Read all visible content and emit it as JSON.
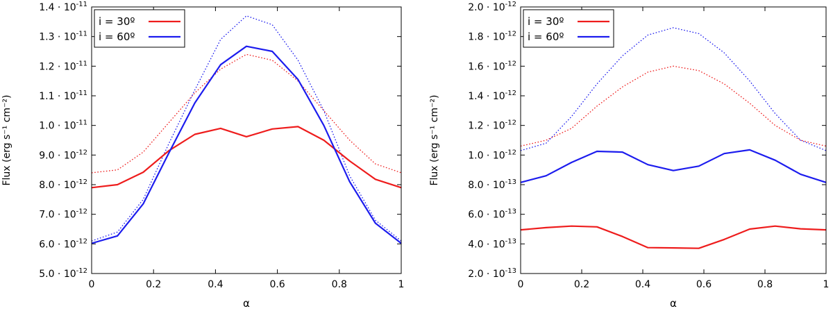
{
  "chart_data": [
    {
      "type": "line",
      "xlabel": "α",
      "ylabel": "Flux (erg s⁻¹ cm⁻²)",
      "xlim": [
        0,
        1
      ],
      "ylim": [
        5e-12,
        1.4e-11
      ],
      "x_ticks": [
        0,
        0.2,
        0.4,
        0.6,
        0.8,
        1
      ],
      "x_tick_labels": [
        "0",
        "0.2",
        "0.4",
        "0.6",
        "0.8",
        "1"
      ],
      "y_ticks": [
        5e-12,
        6e-12,
        7e-12,
        8e-12,
        9e-12,
        1e-11,
        1.1e-11,
        1.2e-11,
        1.3e-11,
        1.4e-11
      ],
      "y_tick_labels": [
        {
          "mantissa": "5.0 · 10",
          "exponent": "-12"
        },
        {
          "mantissa": "6.0 · 10",
          "exponent": "-12"
        },
        {
          "mantissa": "7.0 · 10",
          "exponent": "-12"
        },
        {
          "mantissa": "8.0 · 10",
          "exponent": "-12"
        },
        {
          "mantissa": "9.0 · 10",
          "exponent": "-12"
        },
        {
          "mantissa": "1.0 · 10",
          "exponent": "-11"
        },
        {
          "mantissa": "1.1 · 10",
          "exponent": "-11"
        },
        {
          "mantissa": "1.2 · 10",
          "exponent": "-11"
        },
        {
          "mantissa": "1.3 · 10",
          "exponent": "-11"
        },
        {
          "mantissa": "1.4 · 10",
          "exponent": "-11"
        }
      ],
      "legend": {
        "position": "top-left",
        "entries": [
          {
            "label": "i = 30º",
            "color": "#ee1c1c"
          },
          {
            "label": "i = 60º",
            "color": "#1c1cee"
          }
        ]
      },
      "x": [
        0,
        0.0833,
        0.1667,
        0.25,
        0.3333,
        0.4167,
        0.5,
        0.5833,
        0.6667,
        0.75,
        0.8333,
        0.9167,
        1
      ],
      "series": [
        {
          "name": "i = 30º",
          "style": "solid",
          "color": "#ee1c1c",
          "values": [
            7.9e-12,
            8e-12,
            8.42e-12,
            9.15e-12,
            9.7e-12,
            9.9e-12,
            9.62e-12,
            9.88e-12,
            9.96e-12,
            9.5e-12,
            8.8e-12,
            8.18e-12,
            7.9e-12
          ]
        },
        {
          "name": "i = 60º",
          "style": "solid",
          "color": "#1c1cee",
          "values": [
            6.02e-12,
            6.27e-12,
            7.35e-12,
            9.08e-12,
            1.076e-11,
            1.205e-11,
            1.267e-11,
            1.25e-11,
            1.155e-11,
            1e-11,
            8.1e-12,
            6.7e-12,
            6.02e-12
          ]
        },
        {
          "name": "i = 30º (dotted)",
          "style": "dotted",
          "color": "#ee1c1c",
          "values": [
            8.4e-12,
            8.5e-12,
            9.1e-12,
            1.01e-11,
            1.11e-11,
            1.19e-11,
            1.24e-11,
            1.22e-11,
            1.15e-11,
            1.05e-11,
            9.5e-12,
            8.7e-12,
            8.4e-12
          ]
        },
        {
          "name": "i = 60º (dotted)",
          "style": "dotted",
          "color": "#1c1cee",
          "values": [
            6.1e-12,
            6.4e-12,
            7.5e-12,
            9.4e-12,
            1.12e-11,
            1.29e-11,
            1.37e-11,
            1.34e-11,
            1.22e-11,
            1.05e-11,
            8.3e-12,
            6.8e-12,
            6.1e-12
          ]
        }
      ]
    },
    {
      "type": "line",
      "xlabel": "α",
      "ylabel": "Flux (erg s⁻¹ cm⁻²)",
      "xlim": [
        0,
        1
      ],
      "ylim": [
        2e-13,
        2e-12
      ],
      "x_ticks": [
        0,
        0.2,
        0.4,
        0.6,
        0.8,
        1
      ],
      "x_tick_labels": [
        "0",
        "0.2",
        "0.4",
        "0.6",
        "0.8",
        "1"
      ],
      "y_ticks": [
        2e-13,
        4e-13,
        6e-13,
        8e-13,
        1e-12,
        1.2e-12,
        1.4e-12,
        1.6e-12,
        1.8e-12,
        2e-12
      ],
      "y_tick_labels": [
        {
          "mantissa": "2.0 · 10",
          "exponent": "-13"
        },
        {
          "mantissa": "4.0 · 10",
          "exponent": "-13"
        },
        {
          "mantissa": "6.0 · 10",
          "exponent": "-13"
        },
        {
          "mantissa": "8.0 · 10",
          "exponent": "-13"
        },
        {
          "mantissa": "1.0 · 10",
          "exponent": "-12"
        },
        {
          "mantissa": "1.2 · 10",
          "exponent": "-12"
        },
        {
          "mantissa": "1.4 · 10",
          "exponent": "-12"
        },
        {
          "mantissa": "1.6 · 10",
          "exponent": "-12"
        },
        {
          "mantissa": "1.8 · 10",
          "exponent": "-12"
        },
        {
          "mantissa": "2.0 · 10",
          "exponent": "-12"
        }
      ],
      "legend": {
        "position": "top-left",
        "entries": [
          {
            "label": "i = 30º",
            "color": "#ee1c1c"
          },
          {
            "label": "i = 60º",
            "color": "#1c1cee"
          }
        ]
      },
      "x": [
        0,
        0.0833,
        0.1667,
        0.25,
        0.3333,
        0.4167,
        0.5,
        0.5833,
        0.6667,
        0.75,
        0.8333,
        0.9167,
        1
      ],
      "series": [
        {
          "name": "i = 30º",
          "style": "solid",
          "color": "#ee1c1c",
          "values": [
            4.95e-13,
            5.1e-13,
            5.2e-13,
            5.15e-13,
            4.5e-13,
            3.75e-13,
            3.73e-13,
            3.7e-13,
            4.3e-13,
            5e-13,
            5.2e-13,
            5.02e-13,
            4.95e-13
          ]
        },
        {
          "name": "i = 60º",
          "style": "solid",
          "color": "#1c1cee",
          "values": [
            8.15e-13,
            8.6e-13,
            9.5e-13,
            1.025e-12,
            1.02e-12,
            9.35e-13,
            8.95e-13,
            9.25e-13,
            1.01e-12,
            1.035e-12,
            9.65e-13,
            8.7e-13,
            8.15e-13
          ]
        },
        {
          "name": "i = 30º (dotted)",
          "style": "dotted",
          "color": "#ee1c1c",
          "values": [
            1.06e-12,
            1.1e-12,
            1.18e-12,
            1.33e-12,
            1.46e-12,
            1.56e-12,
            1.6e-12,
            1.57e-12,
            1.48e-12,
            1.35e-12,
            1.2e-12,
            1.1e-12,
            1.06e-12
          ]
        },
        {
          "name": "i = 60º (dotted)",
          "style": "dotted",
          "color": "#1c1cee",
          "values": [
            1.03e-12,
            1.08e-12,
            1.26e-12,
            1.48e-12,
            1.67e-12,
            1.81e-12,
            1.86e-12,
            1.82e-12,
            1.69e-12,
            1.5e-12,
            1.28e-12,
            1.1e-12,
            1.03e-12
          ]
        }
      ]
    }
  ]
}
